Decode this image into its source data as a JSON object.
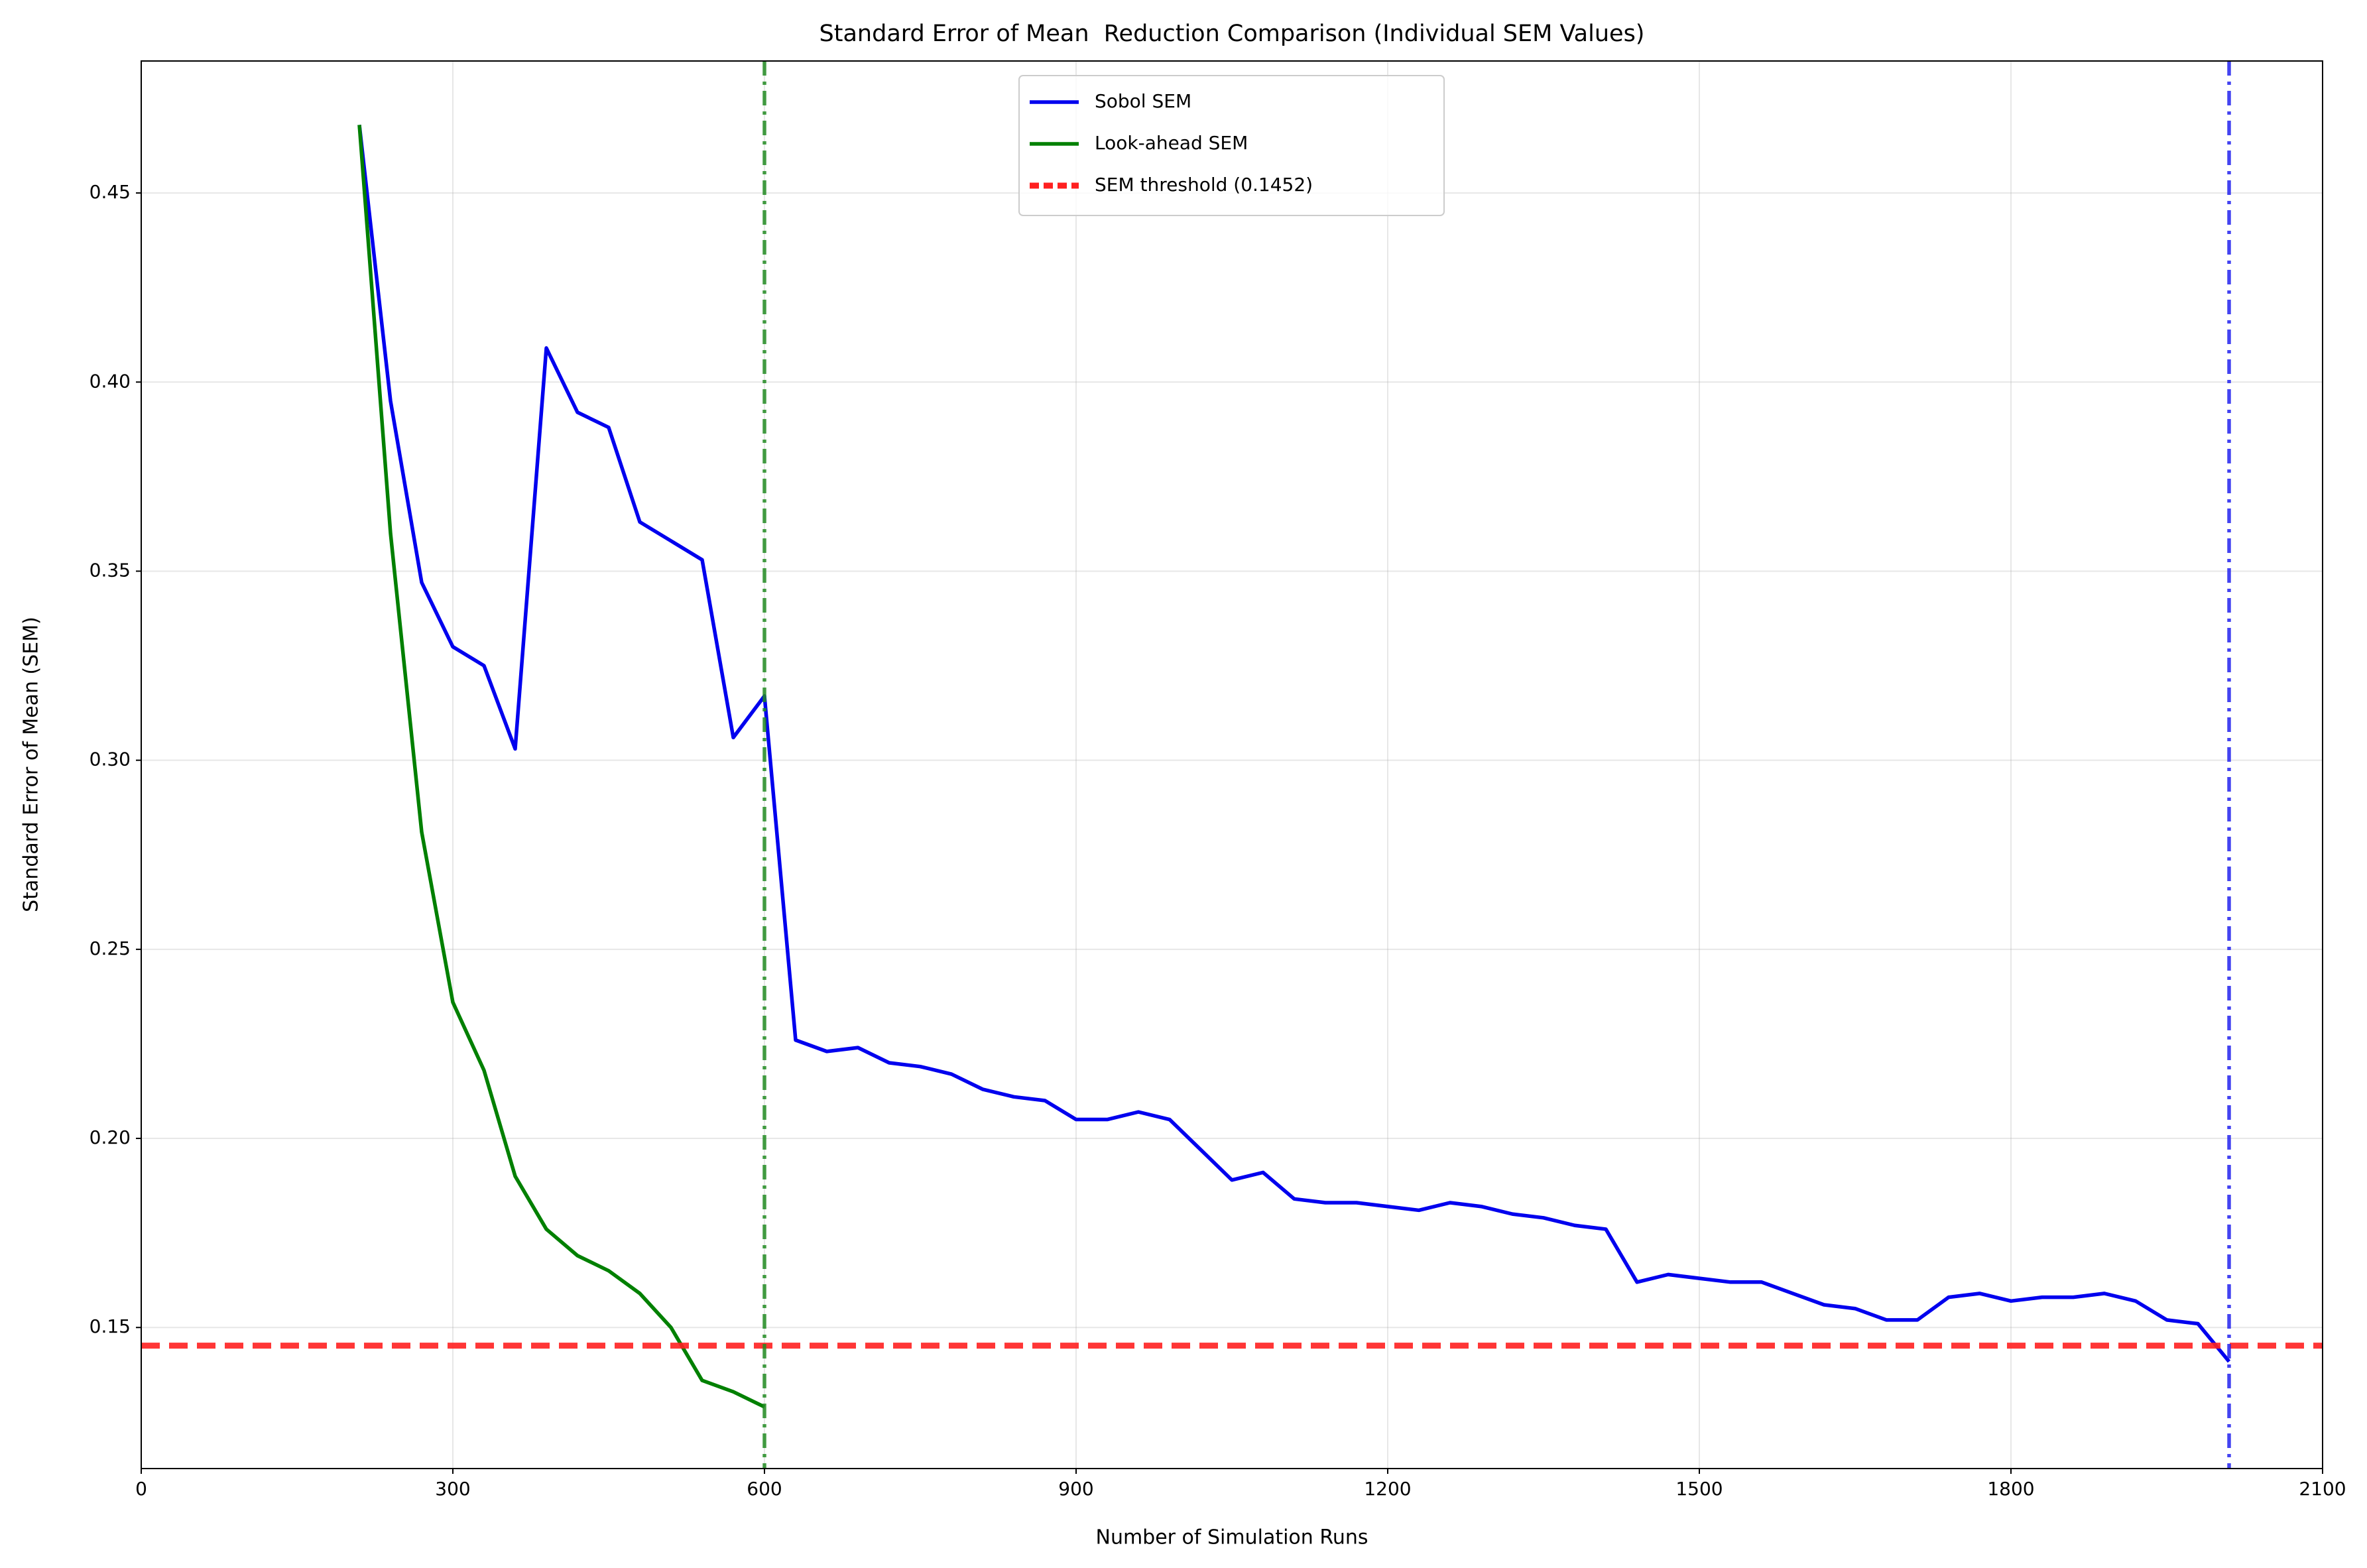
{
  "chart_data": {
    "type": "line",
    "title": "Standard Error of Mean  Reduction Comparison (Individual SEM Values)",
    "x_label": "Number of Simulation Runs",
    "y_label": "Standard Error of Mean (SEM)",
    "xlim": [
      0,
      2100
    ],
    "xticks": [
      0,
      300,
      600,
      900,
      1200,
      1500,
      1800,
      2100
    ],
    "ylim": [
      0.1127,
      0.4849
    ],
    "yticks": [
      0.15,
      {
        "value": 0.2,
        "label": "0.20"
      },
      0.25,
      {
        "value": 0.3,
        "label": "0.30"
      },
      0.35,
      {
        "value": 0.4,
        "label": "0.40"
      },
      0.45
    ],
    "grid": true,
    "legend": "upper center",
    "series": [
      {
        "name": "Sobol SEM",
        "color": "#0000ee",
        "x": [
          210,
          240,
          270,
          300,
          330,
          360,
          390,
          420,
          450,
          480,
          510,
          540,
          570,
          600,
          630,
          660,
          690,
          720,
          750,
          780,
          810,
          840,
          870,
          900,
          930,
          960,
          990,
          1020,
          1050,
          1080,
          1110,
          1140,
          1170,
          1200,
          1230,
          1260,
          1290,
          1320,
          1350,
          1380,
          1410,
          1440,
          1470,
          1500,
          1530,
          1560,
          1590,
          1620,
          1650,
          1680,
          1710,
          1740,
          1770,
          1800,
          1830,
          1860,
          1890,
          1920,
          1950,
          1980,
          2010
        ],
        "values": [
          0.468,
          0.395,
          0.347,
          0.33,
          0.325,
          0.303,
          0.409,
          0.392,
          0.388,
          0.363,
          0.358,
          0.353,
          0.306,
          0.317,
          0.226,
          0.223,
          0.224,
          0.22,
          0.219,
          0.217,
          0.213,
          0.211,
          0.21,
          0.205,
          0.205,
          0.207,
          0.205,
          0.197,
          0.189,
          0.191,
          0.184,
          0.183,
          0.183,
          0.182,
          0.181,
          0.183,
          0.182,
          0.18,
          0.179,
          0.177,
          0.176,
          0.162,
          0.164,
          0.163,
          0.162,
          0.162,
          0.159,
          0.156,
          0.155,
          0.152,
          0.152,
          0.158,
          0.159,
          0.157,
          0.158,
          0.158,
          0.159,
          0.157,
          0.152,
          0.151,
          0.141
        ]
      },
      {
        "name": "Look-ahead SEM",
        "color": "#008000",
        "x": [
          210,
          240,
          270,
          300,
          330,
          360,
          390,
          420,
          450,
          480,
          510,
          540,
          570,
          600
        ],
        "values": [
          0.468,
          0.36,
          0.281,
          0.236,
          0.218,
          0.19,
          0.176,
          0.169,
          0.165,
          0.159,
          0.15,
          0.136,
          0.133,
          0.129
        ]
      }
    ],
    "hlines": [
      {
        "name": "SEM threshold (0.1452)",
        "value": 0.1452,
        "color": "#ff2020"
      }
    ],
    "vlines": [
      {
        "value": 600,
        "color": "#228b22"
      },
      {
        "value": 2010,
        "color": "#2222ee"
      }
    ]
  }
}
